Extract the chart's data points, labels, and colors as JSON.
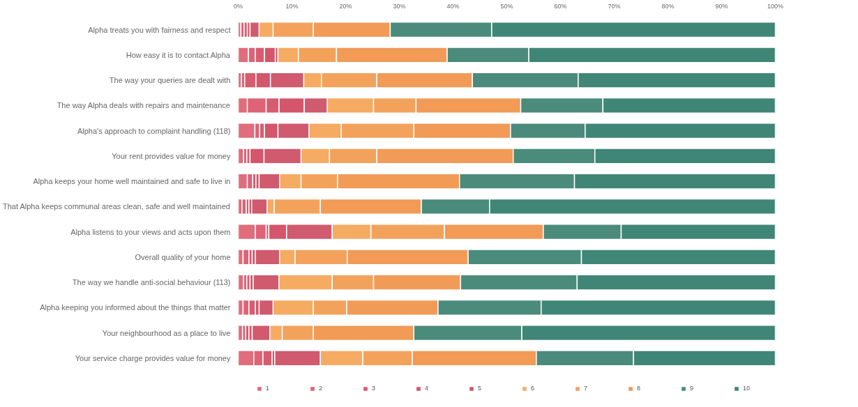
{
  "chart_data": {
    "type": "bar",
    "orientation": "horizontal",
    "stacked": true,
    "categories": [
      "Alpha treats you with fairness and respect",
      "How easy it is to contact Alpha",
      "The way your queries are dealt with",
      "The way Alpha deals with repairs and maintenance",
      "Alpha's approach to complaint handling (118)",
      "Your rent provides value for money",
      "Alpha keeps your home well maintained and safe to live in",
      "That Alpha keeps communal areas clean, safe and well maintained",
      "Alpha listens to your views and acts upon them",
      "Overall quality of your home",
      "The way we handle anti-social behaviour (113)",
      "Alpha keeping you informed about the things that matter",
      "Your neighbourhood as a place to live",
      "Your service charge provides value for money"
    ],
    "series": [
      {
        "name": "1",
        "color": "#e06c7c",
        "values": [
          0.5,
          1.9,
          0.6,
          1.7,
          3.1,
          1.0,
          1.7,
          0.7,
          3.2,
          0.9,
          1.0,
          0.9,
          0.8,
          2.9
        ]
      },
      {
        "name": "2",
        "color": "#dc6476",
        "values": [
          0.6,
          1.3,
          0.6,
          3.5,
          0.9,
          0.6,
          1.0,
          0.8,
          2.0,
          1.1,
          0.6,
          1.1,
          0.6,
          1.7
        ]
      },
      {
        "name": "3",
        "color": "#d85c70",
        "values": [
          0.6,
          1.7,
          2.1,
          2.4,
          0.9,
          0.6,
          0.6,
          0.5,
          0.5,
          0.6,
          0.6,
          1.2,
          0.6,
          1.7
        ]
      },
      {
        "name": "4",
        "color": "#d4566b",
        "values": [
          0.5,
          2.0,
          2.7,
          4.7,
          2.5,
          2.6,
          0.6,
          0.5,
          3.3,
          0.6,
          0.6,
          0.7,
          0.6,
          0.5
        ]
      },
      {
        "name": "5",
        "color": "#d05a6e",
        "values": [
          1.7,
          0.5,
          6.2,
          4.3,
          5.8,
          6.9,
          3.8,
          2.9,
          8.5,
          4.5,
          4.8,
          2.6,
          3.3,
          8.5
        ]
      },
      {
        "name": "6",
        "color": "#f6ab62",
        "values": [
          2.6,
          3.8,
          3.3,
          8.6,
          6.0,
          5.3,
          4.0,
          1.3,
          7.2,
          2.9,
          9.9,
          7.5,
          2.3,
          7.9
        ]
      },
      {
        "name": "7",
        "color": "#f3a25c",
        "values": [
          7.5,
          7.1,
          10.3,
          7.9,
          13.5,
          8.8,
          6.8,
          8.6,
          13.7,
          9.7,
          7.7,
          6.2,
          5.8,
          9.2
        ]
      },
      {
        "name": "8",
        "color": "#f19b57",
        "values": [
          14.3,
          20.6,
          17.8,
          19.5,
          18.0,
          25.4,
          22.7,
          18.8,
          18.4,
          22.5,
          16.2,
          17.0,
          18.7,
          23.1
        ]
      },
      {
        "name": "9",
        "color": "#4b8b7c",
        "values": [
          18.9,
          15.2,
          19.7,
          15.3,
          13.9,
          15.2,
          21.4,
          12.7,
          14.5,
          21.1,
          21.7,
          19.2,
          20.1,
          18.1
        ]
      },
      {
        "name": "10",
        "color": "#408677",
        "values": [
          52.8,
          45.9,
          36.7,
          32.1,
          35.4,
          33.6,
          37.4,
          53.2,
          28.7,
          36.1,
          36.9,
          43.6,
          47.2,
          26.4
        ]
      }
    ],
    "xlim": [
      0,
      100
    ],
    "xticks": [
      {
        "value": 0,
        "label": "0%"
      },
      {
        "value": 10,
        "label": "10%"
      },
      {
        "value": 20,
        "label": "20%"
      },
      {
        "value": 30,
        "label": "30%"
      },
      {
        "value": 40,
        "label": "40%"
      },
      {
        "value": 50,
        "label": "50%"
      },
      {
        "value": 60,
        "label": "60%"
      },
      {
        "value": 70,
        "label": "70%"
      },
      {
        "value": 80,
        "label": "80%"
      },
      {
        "value": 90,
        "label": "90%"
      },
      {
        "value": 100,
        "label": "100%"
      }
    ],
    "grid": false,
    "legend": "bottom"
  }
}
